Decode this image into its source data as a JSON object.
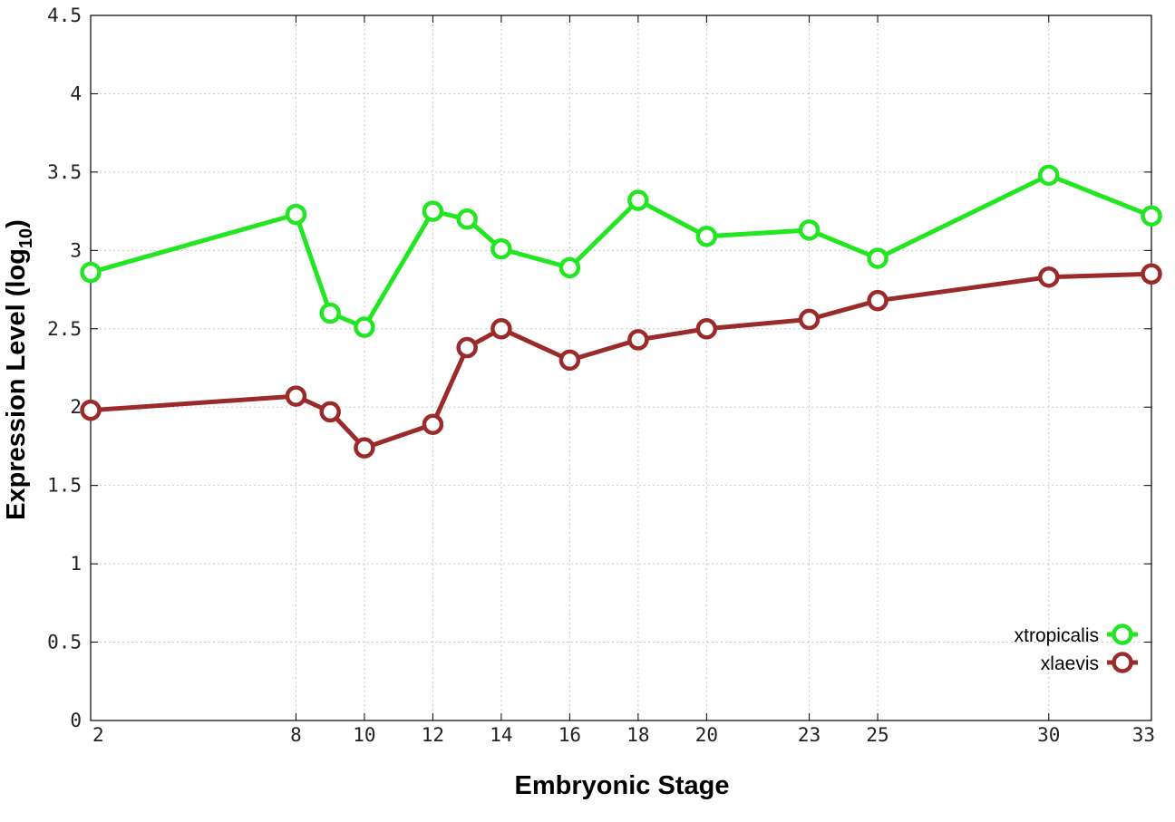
{
  "chart_data": {
    "type": "line",
    "xlabel": "Embryonic Stage",
    "ylabel": "Expression Level (log",
    "ylabel_subscript": "10",
    "ylabel_close": ")",
    "xlim": [
      2,
      33
    ],
    "ylim": [
      0,
      4.5
    ],
    "xticks": [
      2,
      8,
      10,
      12,
      14,
      16,
      18,
      20,
      23,
      25,
      30,
      33
    ],
    "yticks": [
      0,
      0.5,
      1,
      1.5,
      2,
      2.5,
      3,
      3.5,
      4,
      4.5
    ],
    "ytick_labels": [
      "0",
      "0.5",
      "1",
      "1.5",
      "2",
      "2.5",
      "3",
      "3.5",
      "4",
      "4.5"
    ],
    "grid": true,
    "legend_position": "bottom-right",
    "series": [
      {
        "name": "xtropicalis",
        "color": "#22e622",
        "x": [
          2,
          8,
          9,
          10,
          12,
          13,
          14,
          16,
          18,
          20,
          23,
          25,
          30,
          33
        ],
        "y": [
          2.86,
          3.23,
          2.6,
          2.51,
          3.25,
          3.2,
          3.01,
          2.89,
          3.32,
          3.09,
          3.13,
          2.95,
          3.48,
          3.22
        ]
      },
      {
        "name": "xlaevis",
        "color": "#9b2a2a",
        "x": [
          2,
          8,
          9,
          10,
          12,
          13,
          14,
          16,
          18,
          20,
          23,
          25,
          30,
          33
        ],
        "y": [
          1.98,
          2.07,
          1.97,
          1.74,
          1.89,
          2.38,
          2.5,
          2.3,
          2.43,
          2.5,
          2.56,
          2.68,
          2.83,
          2.85
        ]
      }
    ]
  }
}
